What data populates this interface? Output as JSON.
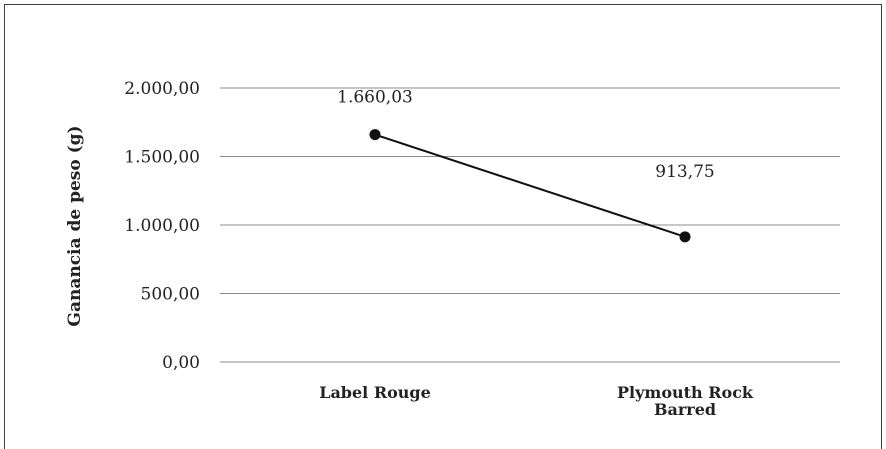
{
  "chart_data": {
    "type": "line",
    "categories": [
      "Label Rouge",
      "Plymouth Rock Barred"
    ],
    "category_label_lines": [
      [
        "Label Rouge"
      ],
      [
        "Plymouth Rock",
        "Barred"
      ]
    ],
    "series": [
      {
        "values": [
          1660.03,
          913.75
        ],
        "value_labels": [
          "1.660,03",
          "913,75"
        ]
      }
    ],
    "ylabel": "Ganancia de peso (g)",
    "ylim": [
      0,
      2000
    ],
    "yticks": [
      0,
      500,
      1000,
      1500,
      2000
    ],
    "ytick_labels": [
      "0,00",
      "500,00",
      "1.000,00",
      "1.500,00",
      "2.000,00"
    ],
    "grid": true,
    "legend": "none",
    "colors": {
      "line": "#111111",
      "grid": "#8c8c8c",
      "frame": "#404040"
    }
  }
}
